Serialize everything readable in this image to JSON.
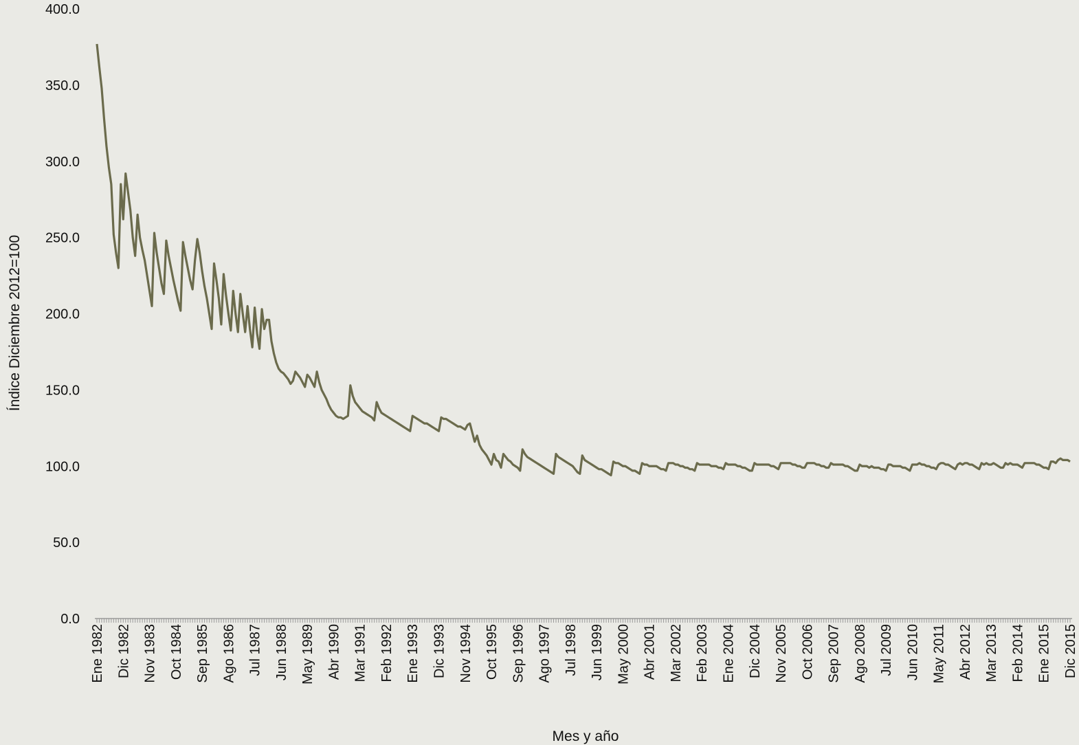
{
  "chart_data": {
    "type": "line",
    "y_label": "Índice Diciembre 2012=100",
    "x_label": "Mes y año",
    "ylim": [
      0,
      400
    ],
    "yticks": [
      {
        "value": 0,
        "label": "0.0"
      },
      {
        "value": 50,
        "label": "50.0"
      },
      {
        "value": 100,
        "label": "100.0"
      },
      {
        "value": 150,
        "label": "150.0"
      },
      {
        "value": 200,
        "label": "200.0"
      },
      {
        "value": 250,
        "label": "250.0"
      },
      {
        "value": 300,
        "label": "300.0"
      },
      {
        "value": 350,
        "label": "350.0"
      },
      {
        "value": 400,
        "label": "400.0"
      }
    ],
    "grid": false,
    "categories": [
      "Ene 1982",
      null,
      null,
      null,
      null,
      null,
      null,
      null,
      null,
      null,
      null,
      "Dic 1982",
      null,
      null,
      null,
      null,
      null,
      null,
      null,
      null,
      null,
      null,
      "Nov 1983",
      null,
      null,
      null,
      null,
      null,
      null,
      null,
      null,
      null,
      null,
      "Oct 1984",
      null,
      null,
      null,
      null,
      null,
      null,
      null,
      null,
      null,
      null,
      "Sep 1985",
      null,
      null,
      null,
      null,
      null,
      null,
      null,
      null,
      null,
      null,
      "Ago 1986",
      null,
      null,
      null,
      null,
      null,
      null,
      null,
      null,
      null,
      null,
      "Jul 1987",
      null,
      null,
      null,
      null,
      null,
      null,
      null,
      null,
      null,
      null,
      "Jun 1988",
      null,
      null,
      null,
      null,
      null,
      null,
      null,
      null,
      null,
      null,
      "May 1989",
      null,
      null,
      null,
      null,
      null,
      null,
      null,
      null,
      null,
      null,
      "Abr 1990",
      null,
      null,
      null,
      null,
      null,
      null,
      null,
      null,
      null,
      null,
      "Mar 1991",
      null,
      null,
      null,
      null,
      null,
      null,
      null,
      null,
      null,
      null,
      "Feb 1992",
      null,
      null,
      null,
      null,
      null,
      null,
      null,
      null,
      null,
      null,
      "Ene 1993",
      null,
      null,
      null,
      null,
      null,
      null,
      null,
      null,
      null,
      null,
      "Dic 1993",
      null,
      null,
      null,
      null,
      null,
      null,
      null,
      null,
      null,
      null,
      "Nov 1994",
      null,
      null,
      null,
      null,
      null,
      null,
      null,
      null,
      null,
      null,
      "Oct 1995",
      null,
      null,
      null,
      null,
      null,
      null,
      null,
      null,
      null,
      null,
      "Sep 1996",
      null,
      null,
      null,
      null,
      null,
      null,
      null,
      null,
      null,
      null,
      "Ago 1997",
      null,
      null,
      null,
      null,
      null,
      null,
      null,
      null,
      null,
      null,
      "Jul 1998",
      null,
      null,
      null,
      null,
      null,
      null,
      null,
      null,
      null,
      null,
      "Jun 1999",
      null,
      null,
      null,
      null,
      null,
      null,
      null,
      null,
      null,
      null,
      "May 2000",
      null,
      null,
      null,
      null,
      null,
      null,
      null,
      null,
      null,
      null,
      "Abr 2001",
      null,
      null,
      null,
      null,
      null,
      null,
      null,
      null,
      null,
      null,
      "Mar 2002",
      null,
      null,
      null,
      null,
      null,
      null,
      null,
      null,
      null,
      null,
      "Feb 2003",
      null,
      null,
      null,
      null,
      null,
      null,
      null,
      null,
      null,
      null,
      "Ene 2004",
      null,
      null,
      null,
      null,
      null,
      null,
      null,
      null,
      null,
      null,
      "Dic 2004",
      null,
      null,
      null,
      null,
      null,
      null,
      null,
      null,
      null,
      null,
      "Nov 2005",
      null,
      null,
      null,
      null,
      null,
      null,
      null,
      null,
      null,
      null,
      "Oct 2006",
      null,
      null,
      null,
      null,
      null,
      null,
      null,
      null,
      null,
      null,
      "Sep 2007",
      null,
      null,
      null,
      null,
      null,
      null,
      null,
      null,
      null,
      null,
      "Ago 2008",
      null,
      null,
      null,
      null,
      null,
      null,
      null,
      null,
      null,
      null,
      "Jul 2009",
      null,
      null,
      null,
      null,
      null,
      null,
      null,
      null,
      null,
      null,
      "Jun 2010",
      null,
      null,
      null,
      null,
      null,
      null,
      null,
      null,
      null,
      null,
      "May 2011",
      null,
      null,
      null,
      null,
      null,
      null,
      null,
      null,
      null,
      null,
      "Abr 2012",
      null,
      null,
      null,
      null,
      null,
      null,
      null,
      null,
      null,
      null,
      "Mar 2013",
      null,
      null,
      null,
      null,
      null,
      null,
      null,
      null,
      null,
      null,
      "Feb 2014",
      null,
      null,
      null,
      null,
      null,
      null,
      null,
      null,
      null,
      null,
      "Ene 2015",
      null,
      null,
      null,
      null,
      null,
      null,
      null,
      null,
      null,
      null,
      "Dic 2015"
    ],
    "series": [
      {
        "color": "#6b6b4c",
        "values": [
          377,
          362,
          348,
          328,
          310,
          296,
          285,
          252,
          240,
          230,
          285,
          262,
          292,
          280,
          268,
          250,
          238,
          265,
          250,
          242,
          235,
          225,
          215,
          205,
          253,
          240,
          230,
          220,
          213,
          248,
          238,
          230,
          222,
          215,
          208,
          202,
          247,
          238,
          230,
          222,
          216,
          235,
          249,
          240,
          228,
          218,
          210,
          200,
          190,
          233,
          222,
          210,
          193,
          226,
          212,
          200,
          189,
          215,
          200,
          188,
          213,
          200,
          188,
          205,
          190,
          178,
          204,
          187,
          177,
          203,
          190,
          196,
          196,
          182,
          174,
          168,
          164,
          162,
          161,
          159,
          157,
          154,
          156,
          162,
          160,
          158,
          155,
          152,
          160,
          158,
          155,
          152,
          162,
          155,
          150,
          147,
          144,
          140,
          137,
          135,
          133,
          132,
          132,
          131,
          132,
          133,
          153,
          146,
          142,
          140,
          138,
          136,
          135,
          134,
          133,
          132,
          130,
          142,
          138,
          135,
          134,
          133,
          132,
          131,
          130,
          129,
          128,
          127,
          126,
          125,
          124,
          123,
          133,
          132,
          131,
          130,
          129,
          128,
          128,
          127,
          126,
          125,
          124,
          123,
          132,
          131,
          131,
          130,
          129,
          128,
          127,
          126,
          126,
          125,
          124,
          127,
          128,
          122,
          116,
          120,
          114,
          111,
          109,
          107,
          104,
          101,
          108,
          104,
          103,
          99,
          108,
          106,
          104,
          103,
          101,
          100,
          99,
          97,
          111,
          108,
          106,
          105,
          104,
          103,
          102,
          101,
          100,
          99,
          98,
          97,
          96,
          95,
          108,
          106,
          105,
          104,
          103,
          102,
          101,
          100,
          98,
          96,
          95,
          107,
          104,
          103,
          102,
          101,
          100,
          99,
          98,
          98,
          97,
          96,
          95,
          94,
          103,
          102,
          102,
          101,
          100,
          100,
          99,
          98,
          97,
          97,
          96,
          95,
          102,
          101,
          101,
          100,
          100,
          100,
          100,
          99,
          98,
          98,
          97,
          102,
          102,
          102,
          101,
          101,
          100,
          100,
          99,
          99,
          98,
          98,
          97,
          102,
          101,
          101,
          101,
          101,
          101,
          100,
          100,
          100,
          99,
          99,
          98,
          102,
          101,
          101,
          101,
          101,
          100,
          100,
          99,
          99,
          98,
          97,
          97,
          102,
          101,
          101,
          101,
          101,
          101,
          101,
          100,
          100,
          99,
          98,
          102,
          102,
          102,
          102,
          102,
          101,
          101,
          100,
          100,
          99,
          99,
          102,
          102,
          102,
          102,
          101,
          101,
          100,
          100,
          99,
          99,
          102,
          101,
          101,
          101,
          101,
          101,
          100,
          100,
          99,
          98,
          97,
          97,
          101,
          100,
          100,
          100,
          99,
          100,
          99,
          99,
          99,
          98,
          98,
          97,
          101,
          101,
          100,
          100,
          100,
          100,
          99,
          99,
          98,
          97,
          101,
          101,
          101,
          102,
          101,
          101,
          100,
          100,
          99,
          99,
          98,
          101,
          102,
          102,
          101,
          101,
          100,
          99,
          98,
          101,
          102,
          101,
          102,
          102,
          101,
          101,
          100,
          99,
          98,
          102,
          101,
          102,
          101,
          101,
          102,
          101,
          100,
          99,
          99,
          102,
          101,
          102,
          101,
          101,
          101,
          100,
          99,
          102,
          102,
          102,
          102,
          102,
          101,
          101,
          100,
          99,
          99,
          98,
          103,
          103,
          102,
          104,
          105,
          104,
          104,
          104,
          103
        ]
      }
    ]
  }
}
